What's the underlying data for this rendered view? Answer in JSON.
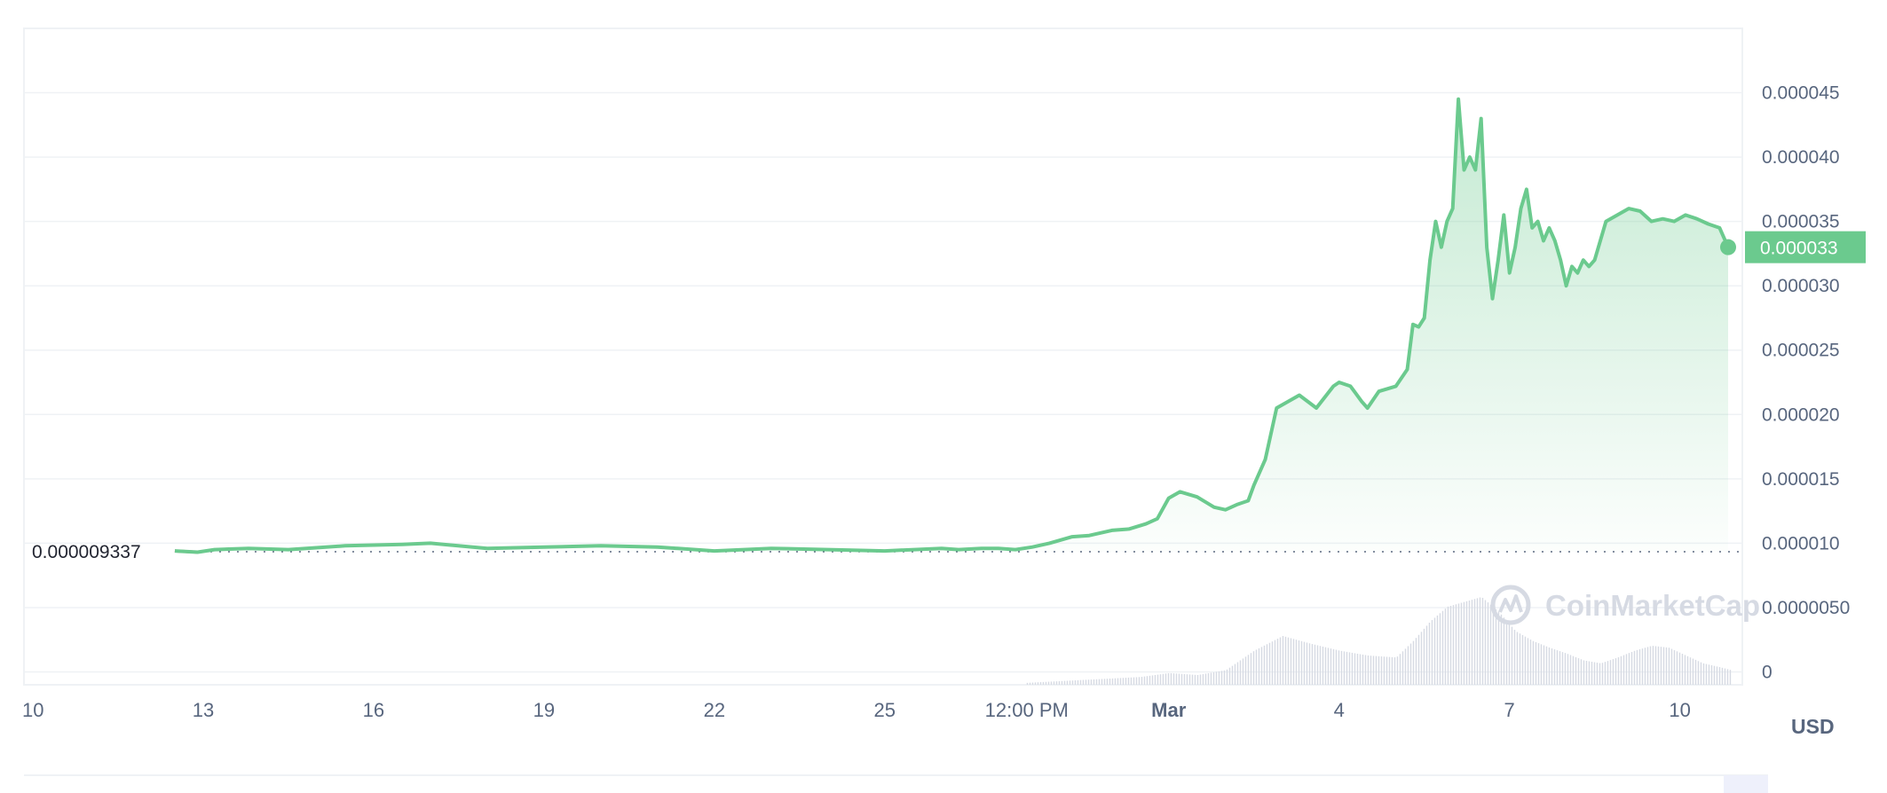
{
  "chart_data": {
    "type": "area",
    "title": "",
    "xlabel": "",
    "ylabel": "",
    "unit_label": "USD",
    "ylim": [
      -1e-06,
      5e-05
    ],
    "y_ticks": [
      "0",
      "0.0000050",
      "0.000010",
      "0.000015",
      "0.000020",
      "0.000025",
      "0.000030",
      "0.000035",
      "0.000040",
      "0.000045"
    ],
    "y_tick_values": [
      0,
      5e-06,
      1e-05,
      1.5e-05,
      2e-05,
      2.5e-05,
      3e-05,
      3.5e-05,
      4e-05,
      4.5e-05
    ],
    "x_ticks": [
      {
        "label": "10",
        "t": 0,
        "bold": false
      },
      {
        "label": "13",
        "t": 3,
        "bold": false
      },
      {
        "label": "16",
        "t": 6,
        "bold": false
      },
      {
        "label": "19",
        "t": 9,
        "bold": false
      },
      {
        "label": "22",
        "t": 12,
        "bold": false
      },
      {
        "label": "25",
        "t": 15,
        "bold": false
      },
      {
        "label": "12:00 PM",
        "t": 17.5,
        "bold": false
      },
      {
        "label": "Mar",
        "t": 20,
        "bold": true
      },
      {
        "label": "4",
        "t": 23,
        "bold": false
      },
      {
        "label": "7",
        "t": 26,
        "bold": false
      },
      {
        "label": "10",
        "t": 29,
        "bold": false
      }
    ],
    "x_domain": [
      0,
      30.1
    ],
    "start_price": 9.337e-06,
    "start_price_label": "0.000009337",
    "current_price": 3.3e-05,
    "current_price_label": "0.000033",
    "line_color": "#6bca8e",
    "down_color": "#ea3943",
    "tag_color": "#6bca8e",
    "watermark": "CoinMarketCap",
    "series": [
      {
        "x": [
          2.5,
          2.9,
          3.2,
          3.8,
          4.5,
          5.5,
          6.5,
          7.0,
          8.0,
          9.0,
          10.0,
          11.0,
          12.0,
          13.0,
          14.0,
          15.0,
          16.0,
          16.3,
          16.7,
          17.0,
          17.3,
          17.6,
          17.9,
          18.3,
          18.6,
          19.0,
          19.3,
          19.6,
          19.8,
          20.0,
          20.2,
          20.5,
          20.8,
          21.0,
          21.2,
          21.4,
          21.5,
          21.7,
          21.9,
          22.1,
          22.3,
          22.6,
          22.9,
          23.0,
          23.2,
          23.4,
          23.5,
          23.7,
          24.0,
          24.2,
          24.3,
          24.4,
          24.5,
          24.6,
          24.7,
          24.8,
          24.9,
          25.0,
          25.1,
          25.2,
          25.3,
          25.4,
          25.5,
          25.6,
          25.7,
          25.8,
          25.9,
          26.0,
          26.1,
          26.2,
          26.3,
          26.4,
          26.5,
          26.6,
          26.7,
          26.8,
          26.9,
          27.0,
          27.1,
          27.2,
          27.3,
          27.4,
          27.5,
          27.7,
          27.9,
          28.1,
          28.3,
          28.5,
          28.7,
          28.9,
          29.1,
          29.3,
          29.5,
          29.7,
          29.85
        ],
        "y": [
          9.4e-06,
          9.3e-06,
          9.5e-06,
          9.6e-06,
          9.5e-06,
          9.8e-06,
          9.9e-06,
          1e-05,
          9.6e-06,
          9.7e-06,
          9.8e-06,
          9.7e-06,
          9.4e-06,
          9.6e-06,
          9.5e-06,
          9.4e-06,
          9.6e-06,
          9.5e-06,
          9.6e-06,
          9.6e-06,
          9.5e-06,
          9.7e-06,
          1e-05,
          1.05e-05,
          1.06e-05,
          1.1e-05,
          1.11e-05,
          1.15e-05,
          1.19e-05,
          1.35e-05,
          1.4e-05,
          1.36e-05,
          1.28e-05,
          1.26e-05,
          1.3e-05,
          1.33e-05,
          1.45e-05,
          1.65e-05,
          2.05e-05,
          2.1e-05,
          2.15e-05,
          2.05e-05,
          2.22e-05,
          2.25e-05,
          2.22e-05,
          2.1e-05,
          2.05e-05,
          2.18e-05,
          2.22e-05,
          2.35e-05,
          2.7e-05,
          2.68e-05,
          2.75e-05,
          3.2e-05,
          3.5e-05,
          3.3e-05,
          3.5e-05,
          3.6e-05,
          4.45e-05,
          3.9e-05,
          4e-05,
          3.9e-05,
          4.3e-05,
          3.3e-05,
          2.9e-05,
          3.2e-05,
          3.55e-05,
          3.1e-05,
          3.3e-05,
          3.6e-05,
          3.75e-05,
          3.45e-05,
          3.5e-05,
          3.35e-05,
          3.45e-05,
          3.35e-05,
          3.2e-05,
          3e-05,
          3.15e-05,
          3.1e-05,
          3.2e-05,
          3.15e-05,
          3.2e-05,
          3.5e-05,
          3.55e-05,
          3.6e-05,
          3.58e-05,
          3.5e-05,
          3.52e-05,
          3.5e-05,
          3.55e-05,
          3.52e-05,
          3.48e-05,
          3.45e-05,
          3.3e-05
        ]
      }
    ],
    "volume": {
      "x": [
        17.5,
        18.5,
        19.5,
        20.0,
        20.5,
        21.0,
        21.5,
        22.0,
        22.5,
        23.0,
        23.5,
        24.0,
        24.3,
        24.6,
        24.9,
        25.2,
        25.5,
        25.8,
        26.1,
        26.4,
        26.7,
        27.0,
        27.3,
        27.6,
        27.9,
        28.2,
        28.5,
        28.8,
        29.1,
        29.4,
        29.7,
        29.9
      ],
      "v": [
        0.02,
        0.05,
        0.08,
        0.12,
        0.1,
        0.15,
        0.35,
        0.5,
        0.42,
        0.35,
        0.3,
        0.28,
        0.45,
        0.65,
        0.8,
        0.85,
        0.9,
        0.75,
        0.55,
        0.45,
        0.38,
        0.32,
        0.25,
        0.22,
        0.28,
        0.35,
        0.4,
        0.38,
        0.3,
        0.22,
        0.18,
        0.15
      ]
    }
  }
}
